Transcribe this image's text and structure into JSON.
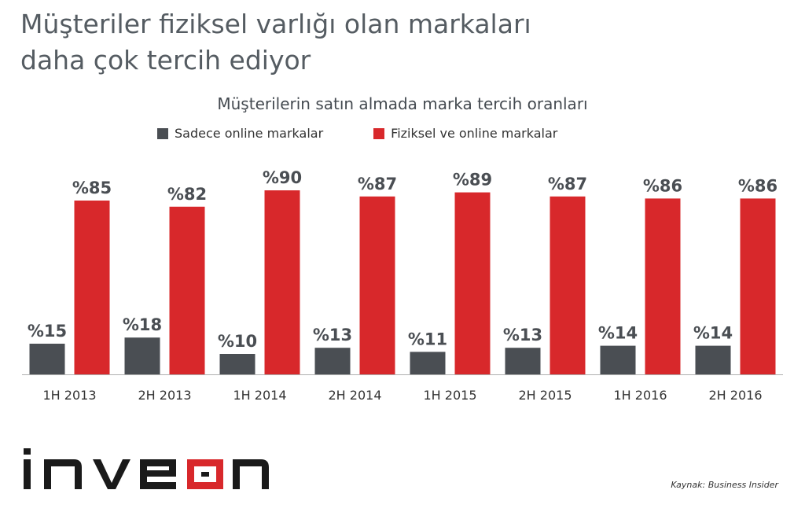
{
  "header": {
    "title_line1": "Müşteriler fiziksel varlığı olan markaları",
    "title_line2": "daha çok tercih ediyor"
  },
  "chart_data": {
    "type": "bar",
    "title": "Müşterilerin satın almada marka tercih oranları",
    "categories": [
      "1H 2013",
      "2H 2013",
      "1H 2014",
      "2H 2014",
      "1H 2015",
      "2H 2015",
      "1H 2016",
      "2H 2016"
    ],
    "series": [
      {
        "name": "Sadece online markalar",
        "values": [
          15,
          18,
          10,
          13,
          11,
          13,
          14,
          14
        ],
        "color": "#4a4e53"
      },
      {
        "name": "Fiziksel ve online markalar",
        "values": [
          85,
          82,
          90,
          87,
          89,
          87,
          86,
          86
        ],
        "color": "#d8282b"
      }
    ],
    "value_prefix": "%",
    "ylim": [
      0,
      100
    ],
    "legend_placement": "top",
    "grid": false
  },
  "footer": {
    "logo_text": "inveon",
    "source": "Kaynak: Business Insider"
  }
}
